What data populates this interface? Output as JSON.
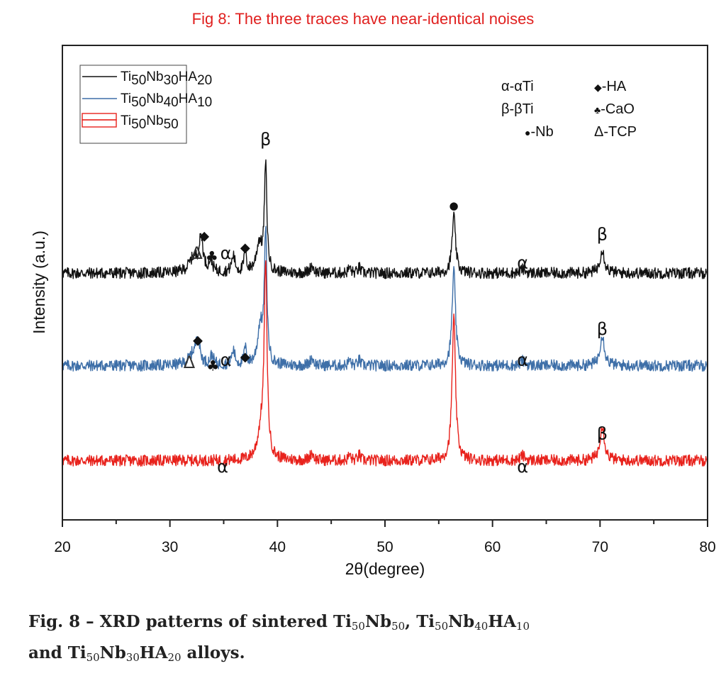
{
  "header": {
    "title": "Fig 8: The three traces have near-identical noises"
  },
  "caption": {
    "line1_prefix": "Fig. 8 – XRD patterns of sintered ",
    "line2_prefix": "and ",
    "line2_suffix": " alloys.",
    "formulas": {
      "ti50nb50": [
        "Ti",
        "50",
        "Nb",
        "50"
      ],
      "ti50nb40ha10": [
        "Ti",
        "50",
        "Nb",
        "40",
        "HA",
        "10"
      ],
      "ti50nb30ha20": [
        "Ti",
        "50",
        "Nb",
        "30",
        "HA",
        "20"
      ]
    },
    "sep": ", "
  },
  "chart_data": {
    "type": "line",
    "title": "",
    "xlabel": "2θ(degree)",
    "ylabel": "Intensity (a.u.)",
    "xlim": [
      20,
      80
    ],
    "ylim": [
      0,
      1
    ],
    "x_ticks": [
      20,
      30,
      40,
      50,
      60,
      70,
      80
    ],
    "x_minor_step": 5,
    "grid": false,
    "legend_position": "top-left",
    "series": [
      {
        "name": "Ti50Nb30HA20",
        "legend_parts": [
          "Ti",
          "50",
          "Nb",
          "30",
          "HA",
          "20"
        ],
        "color": "#111111",
        "offset": 0.52,
        "noise": 0.012,
        "peaks": [
          {
            "x": 32.2,
            "h": 0.03,
            "w": 0.8
          },
          {
            "x": 32.9,
            "h": 0.07,
            "w": 0.35
          },
          {
            "x": 33.8,
            "h": 0.025,
            "w": 0.3
          },
          {
            "x": 35.9,
            "h": 0.035,
            "w": 0.3
          },
          {
            "x": 37.0,
            "h": 0.045,
            "w": 0.2
          },
          {
            "x": 38.3,
            "h": 0.06,
            "w": 0.5
          },
          {
            "x": 38.9,
            "h": 0.22,
            "w": 0.22
          },
          {
            "x": 43.2,
            "h": 0.016,
            "w": 0.3
          },
          {
            "x": 46.7,
            "h": 0.012,
            "w": 0.2
          },
          {
            "x": 47.6,
            "h": 0.012,
            "w": 0.2
          },
          {
            "x": 56.4,
            "h": 0.12,
            "w": 0.3
          },
          {
            "x": 62.8,
            "h": 0.008,
            "w": 0.4
          },
          {
            "x": 70.2,
            "h": 0.05,
            "w": 0.4
          }
        ]
      },
      {
        "name": "Ti50Nb40HA10",
        "legend_parts": [
          "Ti",
          "50",
          "Nb",
          "40",
          "HA",
          "10"
        ],
        "color": "#3e6fa8",
        "offset": 0.325,
        "noise": 0.012,
        "peaks": [
          {
            "x": 32.2,
            "h": 0.025,
            "w": 0.8
          },
          {
            "x": 32.6,
            "h": 0.05,
            "w": 0.3
          },
          {
            "x": 33.9,
            "h": 0.02,
            "w": 0.3
          },
          {
            "x": 35.9,
            "h": 0.03,
            "w": 0.3
          },
          {
            "x": 37.0,
            "h": 0.035,
            "w": 0.2
          },
          {
            "x": 38.4,
            "h": 0.08,
            "w": 0.45
          },
          {
            "x": 38.9,
            "h": 0.27,
            "w": 0.22
          },
          {
            "x": 43.2,
            "h": 0.016,
            "w": 0.3
          },
          {
            "x": 46.7,
            "h": 0.012,
            "w": 0.2
          },
          {
            "x": 47.6,
            "h": 0.012,
            "w": 0.2
          },
          {
            "x": 56.4,
            "h": 0.2,
            "w": 0.3
          },
          {
            "x": 62.8,
            "h": 0.01,
            "w": 0.4
          },
          {
            "x": 70.2,
            "h": 0.065,
            "w": 0.4
          }
        ]
      },
      {
        "name": "Ti50Nb50",
        "legend_parts": [
          "Ti",
          "50",
          "Nb",
          "50"
        ],
        "color": "#e8221c",
        "offset": 0.125,
        "noise": 0.012,
        "peaks": [
          {
            "x": 38.5,
            "h": 0.06,
            "w": 0.6
          },
          {
            "x": 38.9,
            "h": 0.39,
            "w": 0.25
          },
          {
            "x": 43.2,
            "h": 0.016,
            "w": 0.3
          },
          {
            "x": 46.7,
            "h": 0.012,
            "w": 0.2
          },
          {
            "x": 47.6,
            "h": 0.012,
            "w": 0.2
          },
          {
            "x": 56.4,
            "h": 0.3,
            "w": 0.3
          },
          {
            "x": 62.8,
            "h": 0.01,
            "w": 0.4
          },
          {
            "x": 70.2,
            "h": 0.075,
            "w": 0.4
          }
        ]
      }
    ],
    "phase_legend": [
      {
        "symbol": "α",
        "label": "-αTi"
      },
      {
        "symbol": "◆",
        "label": "-HA"
      },
      {
        "symbol": "β",
        "label": "-βTi"
      },
      {
        "symbol": "♣",
        "label": "-CaO"
      },
      {
        "symbol": "●",
        "label": "-Nb"
      },
      {
        "symbol": "Δ",
        "label": "-TCP"
      }
    ],
    "annotations": [
      {
        "text": "β",
        "x": 38.9,
        "y": 0.79
      },
      {
        "text": "◆",
        "x": 33.2,
        "y": 0.59
      },
      {
        "text": "Δ",
        "x": 32.5,
        "y": 0.55
      },
      {
        "text": "♣",
        "x": 33.9,
        "y": 0.545
      },
      {
        "text": "α",
        "x": 35.2,
        "y": 0.55
      },
      {
        "text": "◆",
        "x": 37.0,
        "y": 0.565
      },
      {
        "text": "●",
        "x": 56.4,
        "y": 0.655
      },
      {
        "text": "α",
        "x": 62.8,
        "y": 0.53
      },
      {
        "text": "β",
        "x": 70.2,
        "y": 0.59
      },
      {
        "text": "◆",
        "x": 32.6,
        "y": 0.37
      },
      {
        "text": "Δ",
        "x": 31.8,
        "y": 0.32
      },
      {
        "text": "♣",
        "x": 34.0,
        "y": 0.315
      },
      {
        "text": "α",
        "x": 35.2,
        "y": 0.325
      },
      {
        "text": "◆",
        "x": 37.0,
        "y": 0.335
      },
      {
        "text": "α",
        "x": 62.8,
        "y": 0.325
      },
      {
        "text": "β",
        "x": 70.2,
        "y": 0.39
      },
      {
        "text": "α",
        "x": 34.9,
        "y": 0.1
      },
      {
        "text": "α",
        "x": 62.8,
        "y": 0.1
      },
      {
        "text": "β",
        "x": 70.2,
        "y": 0.17
      }
    ]
  }
}
